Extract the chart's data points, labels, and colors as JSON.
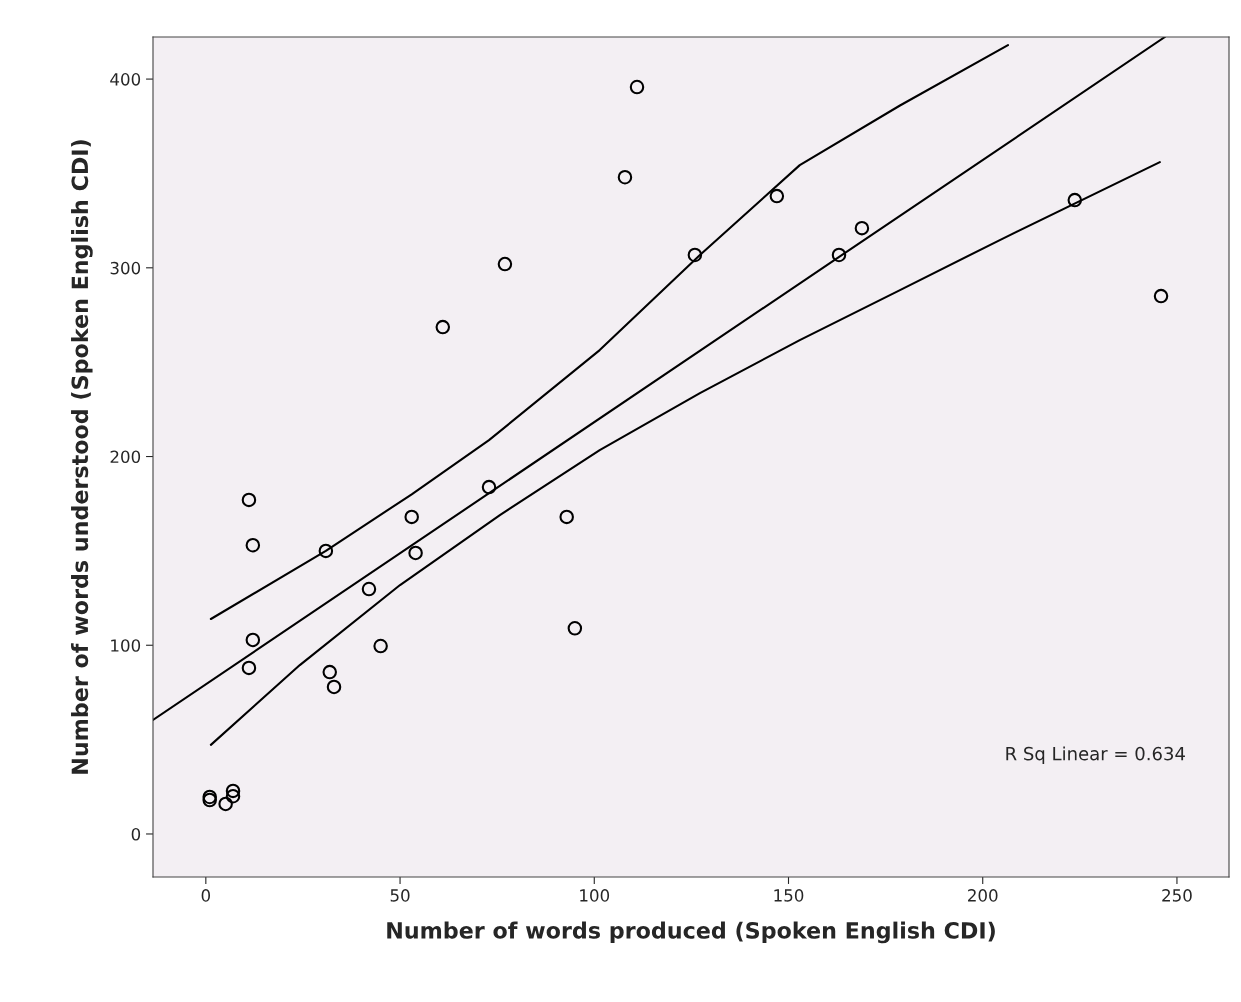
{
  "chart_data": {
    "type": "scatter",
    "xlabel": "Number of words produced (Spoken English CDI)",
    "ylabel": "Number of words understood (Spoken English CDI)",
    "xlim": [
      -13.6,
      263.4
    ],
    "ylim": [
      -22.8,
      422.3
    ],
    "xticks": [
      0,
      50,
      100,
      150,
      200,
      250
    ],
    "yticks": [
      0,
      100,
      200,
      300,
      400
    ],
    "grid": false,
    "marker": "circle",
    "annotations": [
      "R Sq Linear = 0.634"
    ],
    "series": [
      {
        "color": "#000000",
        "x": [
          1.0,
          1.0,
          5.1,
          7.0,
          7.0,
          11.1,
          12.1,
          12.1,
          11.1,
          30.9,
          31.9,
          33.0,
          42.0,
          45.0,
          53.0,
          54.0,
          61.0,
          72.9,
          77.0,
          92.9,
          95.0,
          107.9,
          111.0,
          125.9,
          147.0,
          163.0,
          168.9,
          223.7,
          245.9
        ],
        "values": [
          19.6,
          18.0,
          15.9,
          22.8,
          20.0,
          177.0,
          153.0,
          102.8,
          88.0,
          150.0,
          85.8,
          77.9,
          129.8,
          99.6,
          168.0,
          148.9,
          268.6,
          183.8,
          302.0,
          168.0,
          109.0,
          348.0,
          395.8,
          306.8,
          338.0,
          306.8,
          321.0,
          335.9,
          285.0
        ]
      },
      {
        "type": "line",
        "color": "#000000",
        "marker": "none",
        "x": [
          -13.6,
          246.9
        ],
        "values": [
          60.4,
          422.3
        ]
      },
      {
        "type": "line",
        "color": "#000000",
        "marker": "none",
        "x": [
          1.3,
          30.9,
          53.0,
          72.9,
          101.4,
          127.2,
          152.9,
          178.7,
          206.5
        ],
        "values": [
          113.9,
          150.0,
          180.0,
          208.7,
          256.4,
          306.8,
          354.4,
          386.0,
          418.0
        ]
      },
      {
        "type": "line",
        "color": "#000000",
        "marker": "none",
        "x": [
          1.3,
          24.2,
          50.0,
          75.7,
          101.4,
          127.2,
          152.9,
          178.7,
          204.4,
          245.6
        ],
        "values": [
          47.2,
          89.5,
          131.9,
          169.0,
          203.4,
          233.6,
          261.7,
          288.2,
          314.7,
          356.0
        ]
      }
    ]
  }
}
